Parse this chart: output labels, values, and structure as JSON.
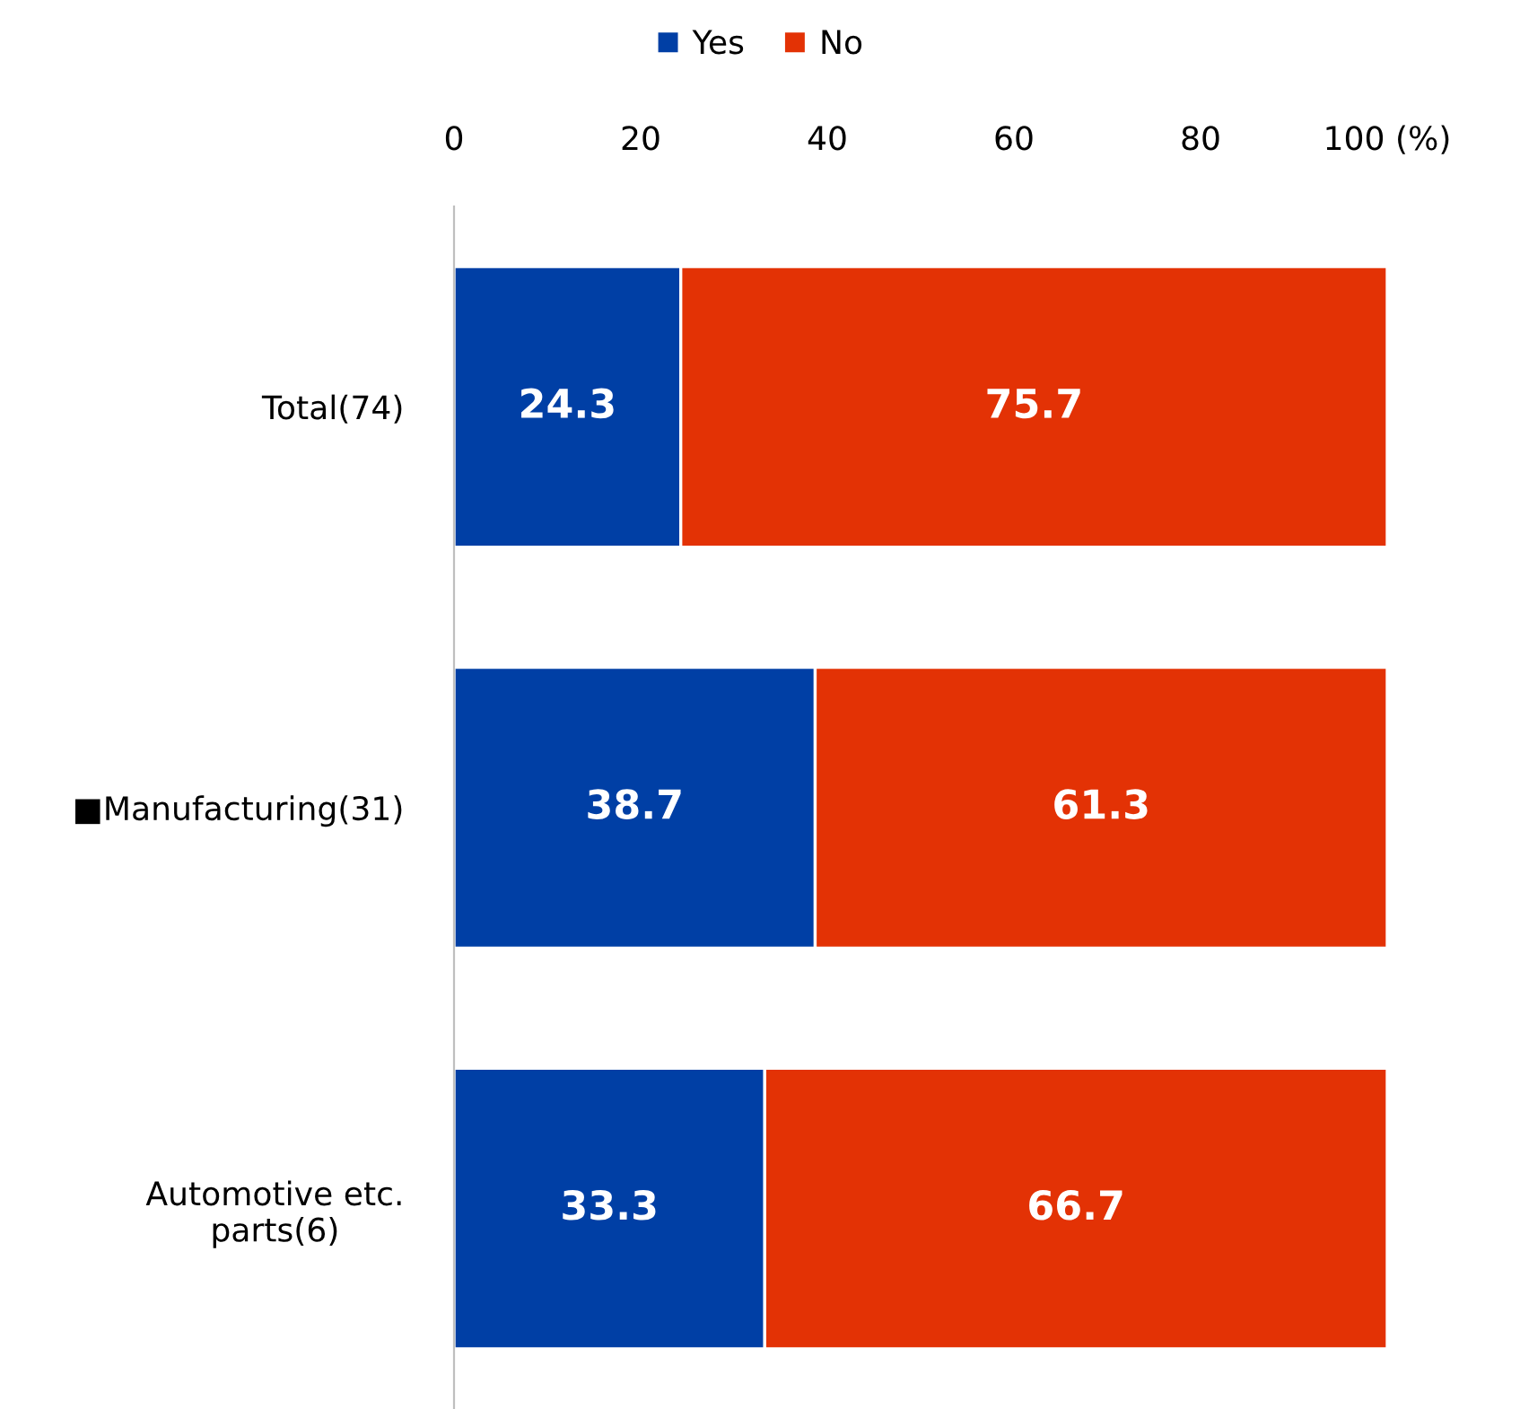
{
  "chart_data": {
    "type": "bar",
    "orientation": "horizontal",
    "stacked": true,
    "categories": [
      "Total(74)",
      "■Manufacturing(31)",
      "Automotive etc.\nparts(6)"
    ],
    "series": [
      {
        "name": "Yes",
        "color": "#003fa5",
        "values": [
          24.3,
          38.7,
          33.3
        ]
      },
      {
        "name": "No",
        "color": "#e33205",
        "values": [
          75.7,
          61.3,
          66.7
        ]
      }
    ],
    "xlim": [
      0,
      100
    ],
    "xticks": [
      0,
      20,
      40,
      60,
      80,
      {
        "value": 100,
        "label": "100 (%)"
      }
    ],
    "data_labels": true,
    "legend": "top",
    "grid": false
  }
}
